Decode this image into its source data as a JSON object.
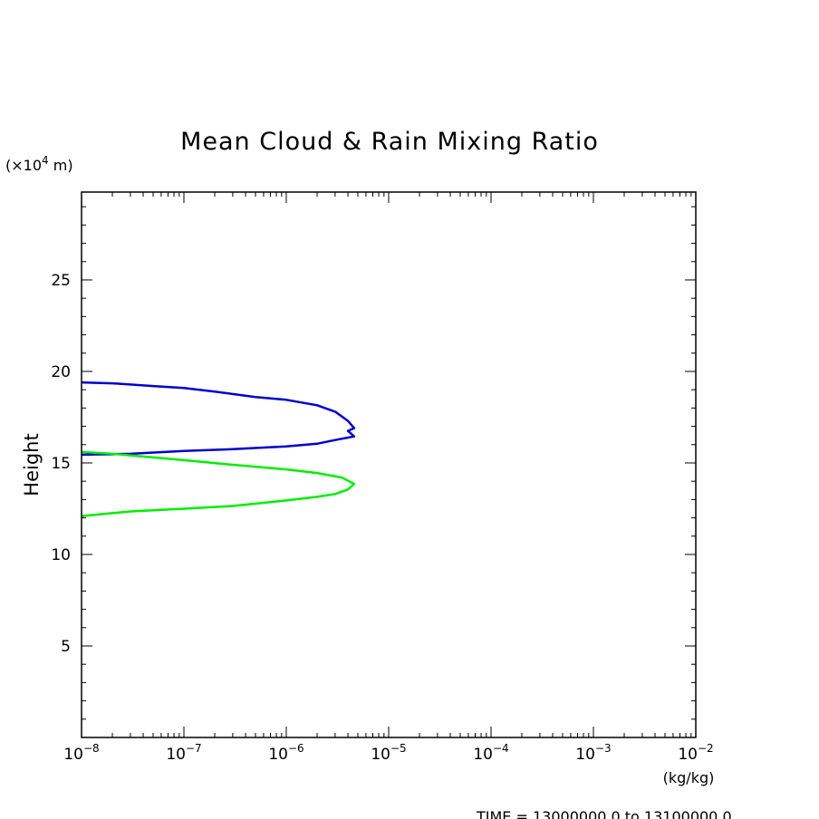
{
  "chart_data": {
    "type": "line",
    "title": "Mean Cloud & Rain Mixing Ratio",
    "xlabel": "(kg/kg)",
    "ylabel": "Height",
    "y_units_label": "(×10⁴ m)",
    "y_units_prefix": "(×10",
    "y_units_exp": "4",
    "y_units_suffix": " m)",
    "footer": "TIME = 13000000.0 to 13100000.0",
    "xscale": "log",
    "xlim": [
      1e-08,
      0.01
    ],
    "ylim": [
      0,
      29.8
    ],
    "x_ticks": [
      {
        "base": "10",
        "exp": "−8",
        "value": 1e-08
      },
      {
        "base": "10",
        "exp": "−7",
        "value": 1e-07
      },
      {
        "base": "10",
        "exp": "−6",
        "value": 1e-06
      },
      {
        "base": "10",
        "exp": "−5",
        "value": 1e-05
      },
      {
        "base": "10",
        "exp": "−4",
        "value": 0.0001
      },
      {
        "base": "10",
        "exp": "−3",
        "value": 0.001
      },
      {
        "base": "10",
        "exp": "−2",
        "value": 0.01
      }
    ],
    "y_ticks": [
      5,
      10,
      15,
      20,
      25
    ],
    "grid": false,
    "legend": "none",
    "series": [
      {
        "color": "#0000cc",
        "points": [
          [
            1e-08,
            19.4
          ],
          [
            2e-08,
            19.35
          ],
          [
            5e-08,
            19.2
          ],
          [
            1e-07,
            19.1
          ],
          [
            2e-07,
            18.9
          ],
          [
            5e-07,
            18.6
          ],
          [
            1e-06,
            18.45
          ],
          [
            2e-06,
            18.15
          ],
          [
            3e-06,
            17.8
          ],
          [
            4e-06,
            17.3
          ],
          [
            4.6e-06,
            16.9
          ],
          [
            4e-06,
            16.75
          ],
          [
            4.6e-06,
            16.45
          ],
          [
            3e-06,
            16.25
          ],
          [
            2e-06,
            16.05
          ],
          [
            1e-06,
            15.9
          ],
          [
            3e-07,
            15.75
          ],
          [
            1e-07,
            15.65
          ],
          [
            3e-08,
            15.5
          ],
          [
            1e-08,
            15.45
          ]
        ]
      },
      {
        "color": "#00ee00",
        "points": [
          [
            1e-08,
            15.6
          ],
          [
            2e-08,
            15.5
          ],
          [
            5e-08,
            15.3
          ],
          [
            1e-07,
            15.15
          ],
          [
            3e-07,
            14.9
          ],
          [
            1e-06,
            14.65
          ],
          [
            2e-06,
            14.45
          ],
          [
            3.5e-06,
            14.2
          ],
          [
            4.6e-06,
            13.85
          ],
          [
            4e-06,
            13.55
          ],
          [
            3e-06,
            13.3
          ],
          [
            2e-06,
            13.15
          ],
          [
            1e-06,
            12.95
          ],
          [
            3e-07,
            12.65
          ],
          [
            1e-07,
            12.5
          ],
          [
            3e-08,
            12.35
          ],
          [
            1e-08,
            12.1
          ]
        ]
      }
    ]
  }
}
